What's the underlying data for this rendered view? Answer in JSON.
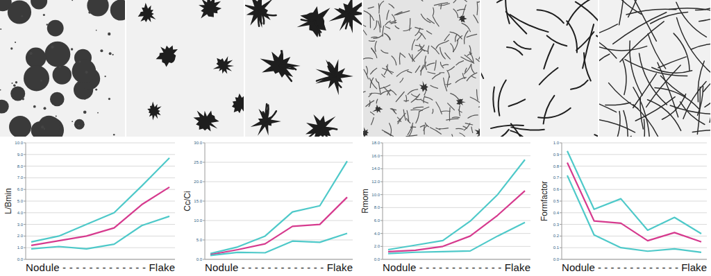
{
  "chart_data": [
    {
      "type": "line",
      "ylabel": "L/Bmin",
      "xlabel": "Nodule - - - - - - - - - - - - - Flake",
      "categories": [
        null,
        null,
        null,
        null,
        null,
        null
      ],
      "series": [
        {
          "color": "#4ec9c9",
          "values": [
            1.5,
            2.0,
            3.0,
            4.0,
            6.3,
            8.7
          ]
        },
        {
          "color": "#d63a8e",
          "values": [
            1.2,
            1.6,
            2.0,
            2.7,
            4.7,
            6.2
          ]
        },
        {
          "color": "#4ec9c9",
          "values": [
            0.9,
            1.1,
            0.9,
            1.3,
            2.9,
            3.7
          ]
        }
      ],
      "ylim": [
        0,
        10
      ],
      "yticks": [
        {
          "value": 0,
          "label": "0.0"
        },
        {
          "value": 1,
          "label": "1.0"
        },
        {
          "value": 2,
          "label": "2.0"
        },
        {
          "value": 3,
          "label": "3.0"
        },
        {
          "value": 4,
          "label": "4.0"
        },
        {
          "value": 5,
          "label": "5.0"
        },
        {
          "value": 6,
          "label": "6.0"
        },
        {
          "value": 7,
          "label": "7.0"
        },
        {
          "value": 8,
          "label": "8.0"
        },
        {
          "value": 9,
          "label": "9.0"
        },
        {
          "value": 10,
          "label": "10.0"
        }
      ],
      "grid": true,
      "tick_labels": "y"
    },
    {
      "type": "line",
      "ylabel": "Cc/Ci",
      "xlabel": "Nodule - - - - - - - - - - - - - Flake",
      "categories": [
        null,
        null,
        null,
        null,
        null,
        null
      ],
      "series": [
        {
          "color": "#4ec9c9",
          "values": [
            1.5,
            3.2,
            6.0,
            12.2,
            13.8,
            25.3
          ]
        },
        {
          "color": "#d63a8e",
          "values": [
            1.2,
            2.5,
            4.0,
            8.5,
            9.0,
            16.0
          ]
        },
        {
          "color": "#4ec9c9",
          "values": [
            1.0,
            1.8,
            1.7,
            4.7,
            4.4,
            6.7
          ]
        }
      ],
      "ylim": [
        0,
        30
      ],
      "yticks": [
        {
          "value": 0,
          "label": "0.0"
        },
        {
          "value": 5,
          "label": "5.0"
        },
        {
          "value": 10,
          "label": "10.0"
        },
        {
          "value": 15,
          "label": "15.0"
        },
        {
          "value": 20,
          "label": "20.0"
        },
        {
          "value": 25,
          "label": "25.0"
        },
        {
          "value": 30,
          "label": "30.0"
        }
      ],
      "grid": true,
      "tick_labels": "y"
    },
    {
      "type": "line",
      "ylabel": "Rmom",
      "xlabel": "Nodule - - - - - - - - - - - - - Flake",
      "categories": [
        null,
        null,
        null,
        null,
        null,
        null
      ],
      "series": [
        {
          "color": "#4ec9c9",
          "values": [
            1.5,
            2.2,
            2.9,
            5.9,
            10.0,
            15.4
          ]
        },
        {
          "color": "#d63a8e",
          "values": [
            1.2,
            1.4,
            2.0,
            3.6,
            6.8,
            10.6
          ]
        },
        {
          "color": "#4ec9c9",
          "values": [
            0.9,
            1.1,
            1.2,
            1.3,
            3.6,
            5.7
          ]
        }
      ],
      "ylim": [
        0,
        18
      ],
      "yticks": [
        {
          "value": 0,
          "label": "0.0"
        },
        {
          "value": 2,
          "label": "2.0"
        },
        {
          "value": 4,
          "label": "4.0"
        },
        {
          "value": 6,
          "label": "6.0"
        },
        {
          "value": 8,
          "label": "8.0"
        },
        {
          "value": 10,
          "label": "10.0"
        },
        {
          "value": 12,
          "label": "12.0"
        },
        {
          "value": 14,
          "label": "14.0"
        },
        {
          "value": 16,
          "label": "16.0"
        },
        {
          "value": 18,
          "label": "18.0"
        }
      ],
      "grid": true,
      "tick_labels": "y"
    },
    {
      "type": "line",
      "ylabel": "Formfactor",
      "xlabel": "Nodule - - - - - - - - - - - - - Flake",
      "categories": [
        null,
        null,
        null,
        null,
        null,
        null
      ],
      "series": [
        {
          "color": "#4ec9c9",
          "values": [
            0.93,
            0.43,
            0.52,
            0.25,
            0.36,
            0.22
          ]
        },
        {
          "color": "#d63a8e",
          "values": [
            0.83,
            0.33,
            0.31,
            0.16,
            0.23,
            0.15
          ]
        },
        {
          "color": "#4ec9c9",
          "values": [
            0.72,
            0.21,
            0.1,
            0.07,
            0.09,
            0.06
          ]
        }
      ],
      "ylim": [
        0,
        1
      ],
      "yticks": [
        {
          "value": 0,
          "label": "0.0"
        },
        {
          "value": 0.1,
          "label": "0.1"
        },
        {
          "value": 0.2,
          "label": "0.2"
        },
        {
          "value": 0.3,
          "label": "0.3"
        },
        {
          "value": 0.4,
          "label": "0.4"
        },
        {
          "value": 0.5,
          "label": "0.5"
        },
        {
          "value": 0.6,
          "label": "0.6"
        },
        {
          "value": 0.7,
          "label": "0.7"
        },
        {
          "value": 0.8,
          "label": "0.8"
        },
        {
          "value": 0.9,
          "label": "0.9"
        },
        {
          "value": 1,
          "label": "1.0"
        }
      ],
      "grid": true,
      "tick_labels": "y"
    }
  ]
}
